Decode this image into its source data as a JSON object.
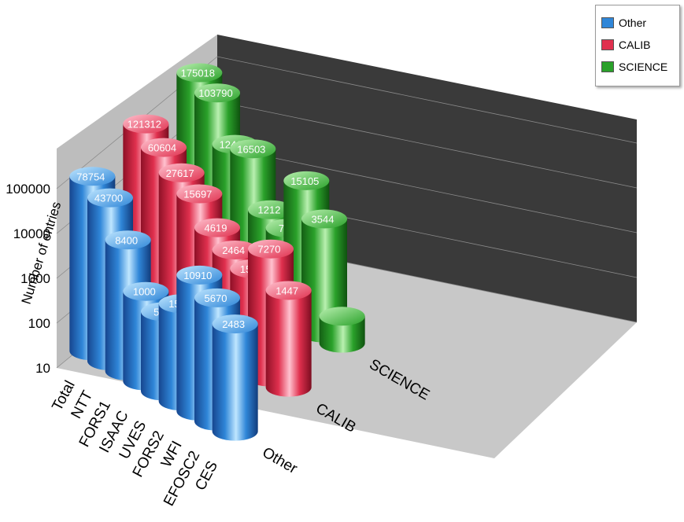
{
  "chart_data": {
    "type": "bar",
    "style": "3d-cylinder",
    "ylabel": "Number of entries",
    "yscale": "log",
    "ylim": [
      10,
      1000000
    ],
    "yticks": [
      "10",
      "100",
      "1000",
      "10000",
      "100000"
    ],
    "categories": [
      "Total",
      "NTT",
      "FORS1",
      "ISAAC",
      "UVES",
      "FORS2",
      "WFI",
      "EFOSC2",
      "CES"
    ],
    "depth_labels": [
      "SCIENCE",
      "CALIB",
      "Other"
    ],
    "legend_position": "top-right",
    "series": [
      {
        "name": "Other",
        "color": "#2f86d8",
        "values": [
          78754,
          43700,
          8400,
          1000,
          593,
          1500,
          10910,
          5670,
          2483
        ],
        "labels": [
          "78754",
          "43700",
          "8400",
          "1000",
          "593",
          "1500",
          "10910",
          "5670",
          "2483"
        ]
      },
      {
        "name": "CALIB",
        "color": "#e0304e",
        "values": [
          121312,
          60604,
          27617,
          15697,
          4619,
          2464,
          1574,
          7270,
          1447
        ],
        "labels": [
          "121312",
          "60604",
          "27617",
          "15697",
          "4619",
          "2464",
          "1574",
          "7270",
          "1447"
        ]
      },
      {
        "name": "SCIENCE",
        "color": "#2aa12a",
        "values": [
          175018,
          103790,
          12419,
          16503,
          1212,
          787,
          15105,
          3544,
          40
        ],
        "labels": [
          "175018",
          "103790",
          "12419",
          "16503",
          "1212",
          "787",
          "15105",
          "3544",
          ""
        ]
      }
    ]
  }
}
